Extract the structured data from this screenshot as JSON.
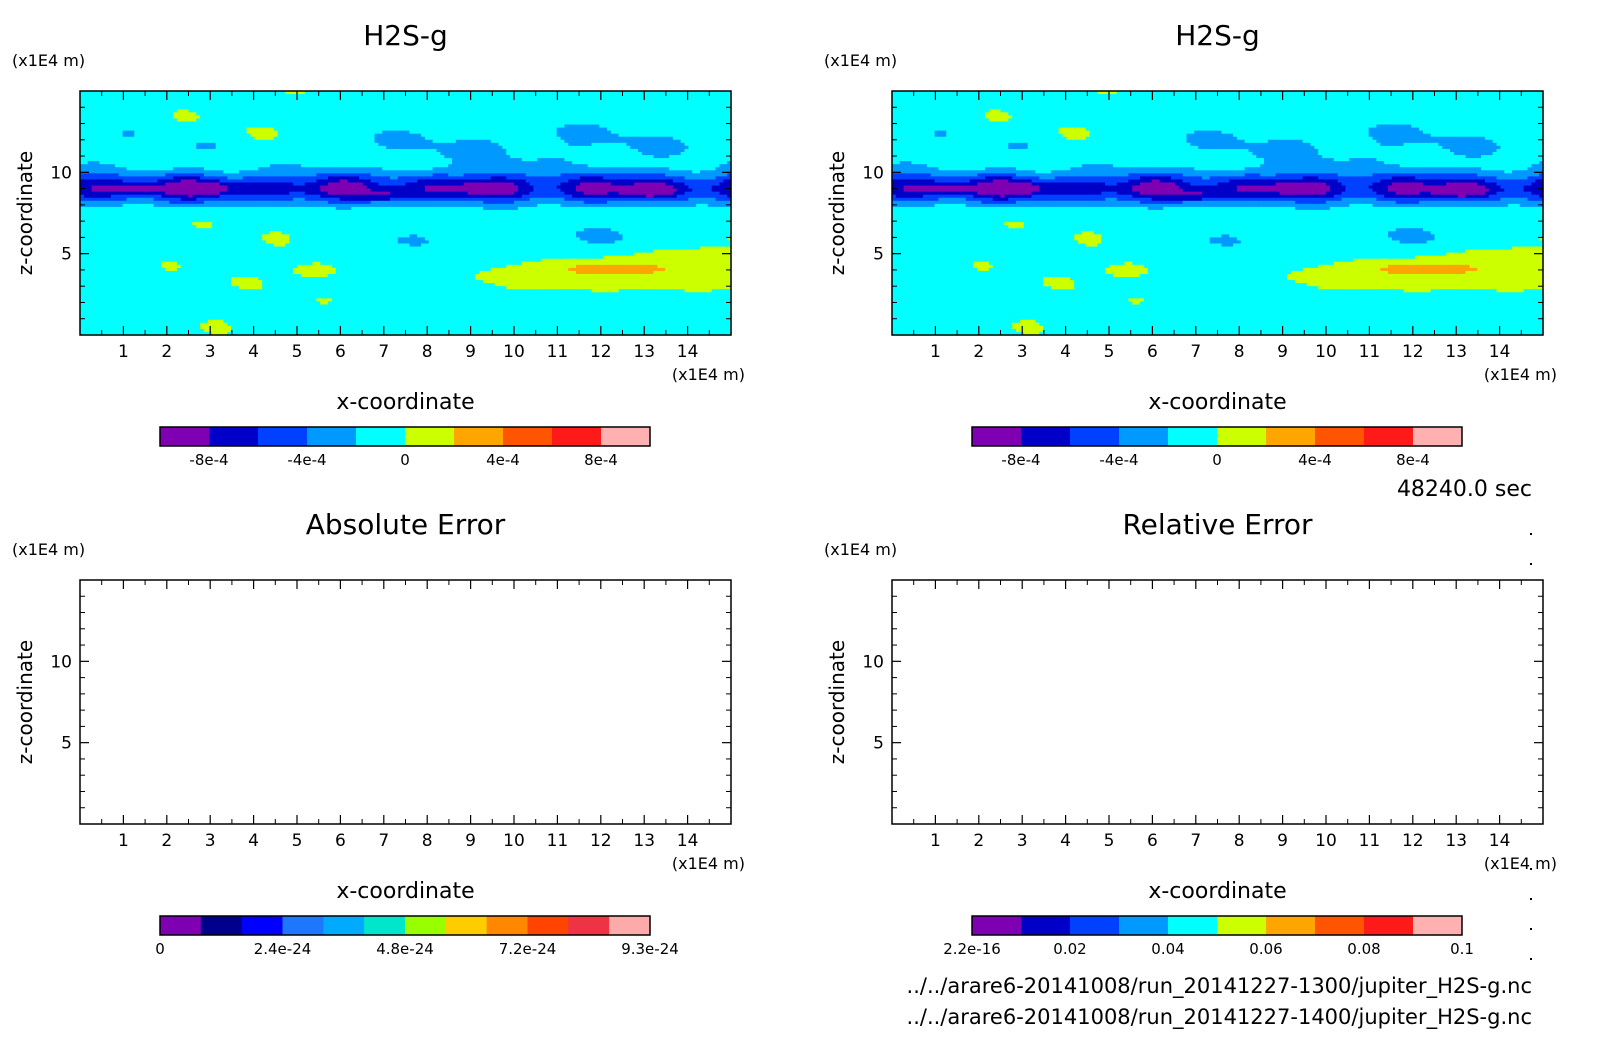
{
  "time_label": "48240.0 sec",
  "files": [
    "../../arare6-20141008/run_20141227-1300/jupiter_H2S-g.nc",
    "../../arare6-20141008/run_20141227-1400/jupiter_H2S-g.nc"
  ],
  "chart_data": [
    {
      "type": "heatmap",
      "title": "H2S-g",
      "xlabel": "x-coordinate",
      "ylabel": "z-coordinate",
      "x_unit": "(x1E4 m)",
      "y_unit": "(x1E4 m)",
      "xlim": [
        0,
        15
      ],
      "ylim": [
        0,
        15
      ],
      "x_ticks": [
        "1",
        "2",
        "3",
        "4",
        "5",
        "6",
        "7",
        "8",
        "9",
        "10",
        "11",
        "12",
        "13",
        "14"
      ],
      "y_ticks": [
        "5",
        "10"
      ],
      "filled": true,
      "colorbar": {
        "colors": [
          "#7f00b2",
          "#0000c8",
          "#0040ff",
          "#0099ff",
          "#00ffff",
          "#ccff00",
          "#ffa500",
          "#ff5500",
          "#ff1a1a",
          "#ffb0b0"
        ],
        "labels": [
          "-8e-4",
          "-4e-4",
          "0",
          "4e-4",
          "8e-4"
        ],
        "range": [
          -0.001,
          0.001
        ]
      }
    },
    {
      "type": "heatmap",
      "title": "H2S-g",
      "xlabel": "x-coordinate",
      "ylabel": "z-coordinate",
      "x_unit": "(x1E4 m)",
      "y_unit": "(x1E4 m)",
      "xlim": [
        0,
        15
      ],
      "ylim": [
        0,
        15
      ],
      "x_ticks": [
        "1",
        "2",
        "3",
        "4",
        "5",
        "6",
        "7",
        "8",
        "9",
        "10",
        "11",
        "12",
        "13",
        "14"
      ],
      "y_ticks": [
        "5",
        "10"
      ],
      "filled": true,
      "colorbar": {
        "colors": [
          "#7f00b2",
          "#0000c8",
          "#0040ff",
          "#0099ff",
          "#00ffff",
          "#ccff00",
          "#ffa500",
          "#ff5500",
          "#ff1a1a",
          "#ffb0b0"
        ],
        "labels": [
          "-8e-4",
          "-4e-4",
          "0",
          "4e-4",
          "8e-4"
        ],
        "range": [
          -0.001,
          0.001
        ]
      }
    },
    {
      "type": "heatmap",
      "title": "Absolute Error",
      "xlabel": "x-coordinate",
      "ylabel": "z-coordinate",
      "x_unit": "(x1E4 m)",
      "y_unit": "(x1E4 m)",
      "xlim": [
        0,
        15
      ],
      "ylim": [
        0,
        15
      ],
      "x_ticks": [
        "1",
        "2",
        "3",
        "4",
        "5",
        "6",
        "7",
        "8",
        "9",
        "10",
        "11",
        "12",
        "13",
        "14"
      ],
      "y_ticks": [
        "5",
        "10"
      ],
      "filled": false,
      "colorbar": {
        "colors": [
          "#7f00b2",
          "#00008b",
          "#0000ff",
          "#1e78ff",
          "#00aaff",
          "#00e6c8",
          "#99ff00",
          "#ffcc00",
          "#ff8800",
          "#ff4400",
          "#ee3344",
          "#ffaaaa"
        ],
        "labels": [
          "0",
          "2.4e-24",
          "4.8e-24",
          "7.2e-24",
          "9.3e-24"
        ]
      }
    },
    {
      "type": "heatmap",
      "title": "Relative Error",
      "xlabel": "x-coordinate",
      "ylabel": "z-coordinate",
      "x_unit": "(x1E4 m)",
      "y_unit": "(x1E4 m)",
      "xlim": [
        0,
        15
      ],
      "ylim": [
        0,
        15
      ],
      "x_ticks": [
        "1",
        "2",
        "3",
        "4",
        "5",
        "6",
        "7",
        "8",
        "9",
        "10",
        "11",
        "12",
        "13",
        "14"
      ],
      "y_ticks": [
        "5",
        "10"
      ],
      "filled": false,
      "colorbar": {
        "colors": [
          "#7f00b2",
          "#0000c8",
          "#0040ff",
          "#0099ff",
          "#00ffff",
          "#ccff00",
          "#ffa500",
          "#ff5500",
          "#ff1a1a",
          "#ffb0b0"
        ],
        "labels": [
          "2.2e-16",
          "0.02",
          "0.04",
          "0.06",
          "0.08",
          "0.1"
        ]
      }
    }
  ]
}
